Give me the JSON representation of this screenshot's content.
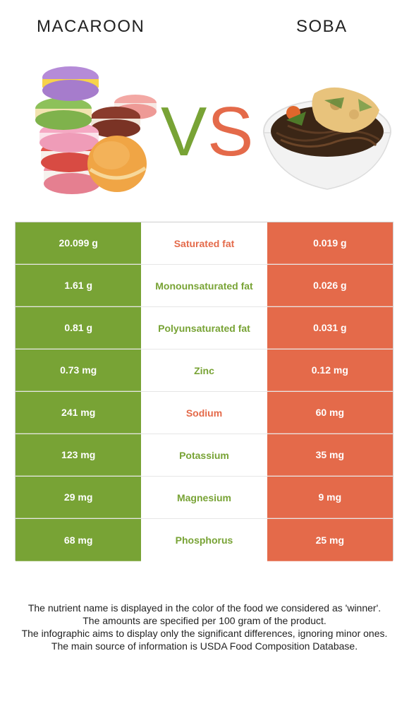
{
  "foods": {
    "left": "MACAROON",
    "right": "SOBA"
  },
  "vs": {
    "v": "V",
    "s": "S"
  },
  "colors": {
    "left_green": "#78a335",
    "right_red": "#e46a4a"
  },
  "rows": [
    {
      "left": "20.099 g",
      "nutrient": "Saturated fat",
      "right": "0.019 g",
      "winner": "right"
    },
    {
      "left": "1.61 g",
      "nutrient": "Monounsaturated fat",
      "right": "0.026 g",
      "winner": "left"
    },
    {
      "left": "0.81 g",
      "nutrient": "Polyunsaturated fat",
      "right": "0.031 g",
      "winner": "left"
    },
    {
      "left": "0.73 mg",
      "nutrient": "Zinc",
      "right": "0.12 mg",
      "winner": "left"
    },
    {
      "left": "241 mg",
      "nutrient": "Sodium",
      "right": "60 mg",
      "winner": "right"
    },
    {
      "left": "123 mg",
      "nutrient": "Potassium",
      "right": "35 mg",
      "winner": "left"
    },
    {
      "left": "29 mg",
      "nutrient": "Magnesium",
      "right": "9 mg",
      "winner": "left"
    },
    {
      "left": "68 mg",
      "nutrient": "Phosphorus",
      "right": "25 mg",
      "winner": "left"
    }
  ],
  "footnotes": [
    "The nutrient name is displayed in the color of the food we considered as 'winner'.",
    "The amounts are specified per 100 gram of the product.",
    "The infographic aims to display only the significant differences, ignoring minor ones.",
    "The main source of information is USDA Food Composition Database."
  ]
}
